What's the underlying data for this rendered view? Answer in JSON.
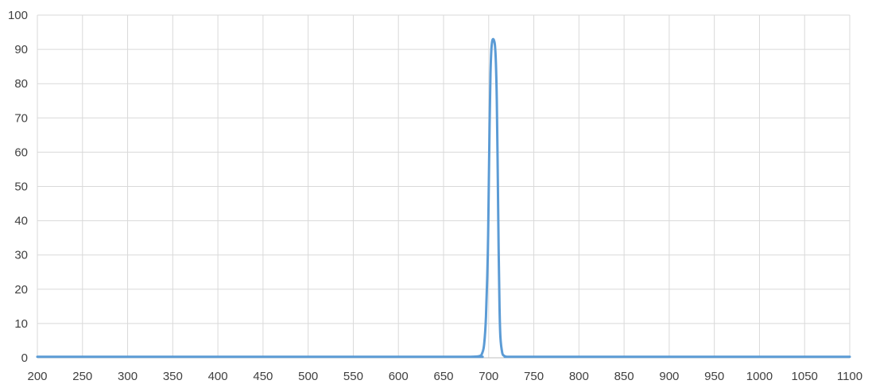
{
  "chart_data": {
    "type": "line",
    "title": "",
    "xlabel": "",
    "ylabel": "",
    "xlim": [
      200,
      1100
    ],
    "ylim": [
      0,
      100
    ],
    "x_ticks": [
      200,
      250,
      300,
      350,
      400,
      450,
      500,
      550,
      600,
      650,
      700,
      750,
      800,
      850,
      900,
      950,
      1000,
      1050,
      1100
    ],
    "y_ticks": [
      0,
      10,
      20,
      30,
      40,
      50,
      60,
      70,
      80,
      90,
      100
    ],
    "grid": true,
    "legend": "none",
    "series_color": "#5b9bd5",
    "series": [
      {
        "x": [
          200,
          650,
          680,
          690,
          693,
          695,
          697,
          699,
          700,
          701,
          702,
          703,
          704,
          705,
          706,
          707,
          708,
          709,
          710,
          711,
          712,
          713,
          715,
          717,
          720,
          730,
          750,
          1100
        ],
        "y": [
          0.3,
          0.3,
          0.3,
          0.5,
          1.5,
          4,
          12,
          30,
          48,
          68,
          83,
          90,
          92.5,
          93,
          92.5,
          91,
          86,
          75,
          55,
          32,
          15,
          6,
          1.5,
          0.6,
          0.3,
          0.3,
          0.3,
          0.3
        ]
      }
    ]
  }
}
